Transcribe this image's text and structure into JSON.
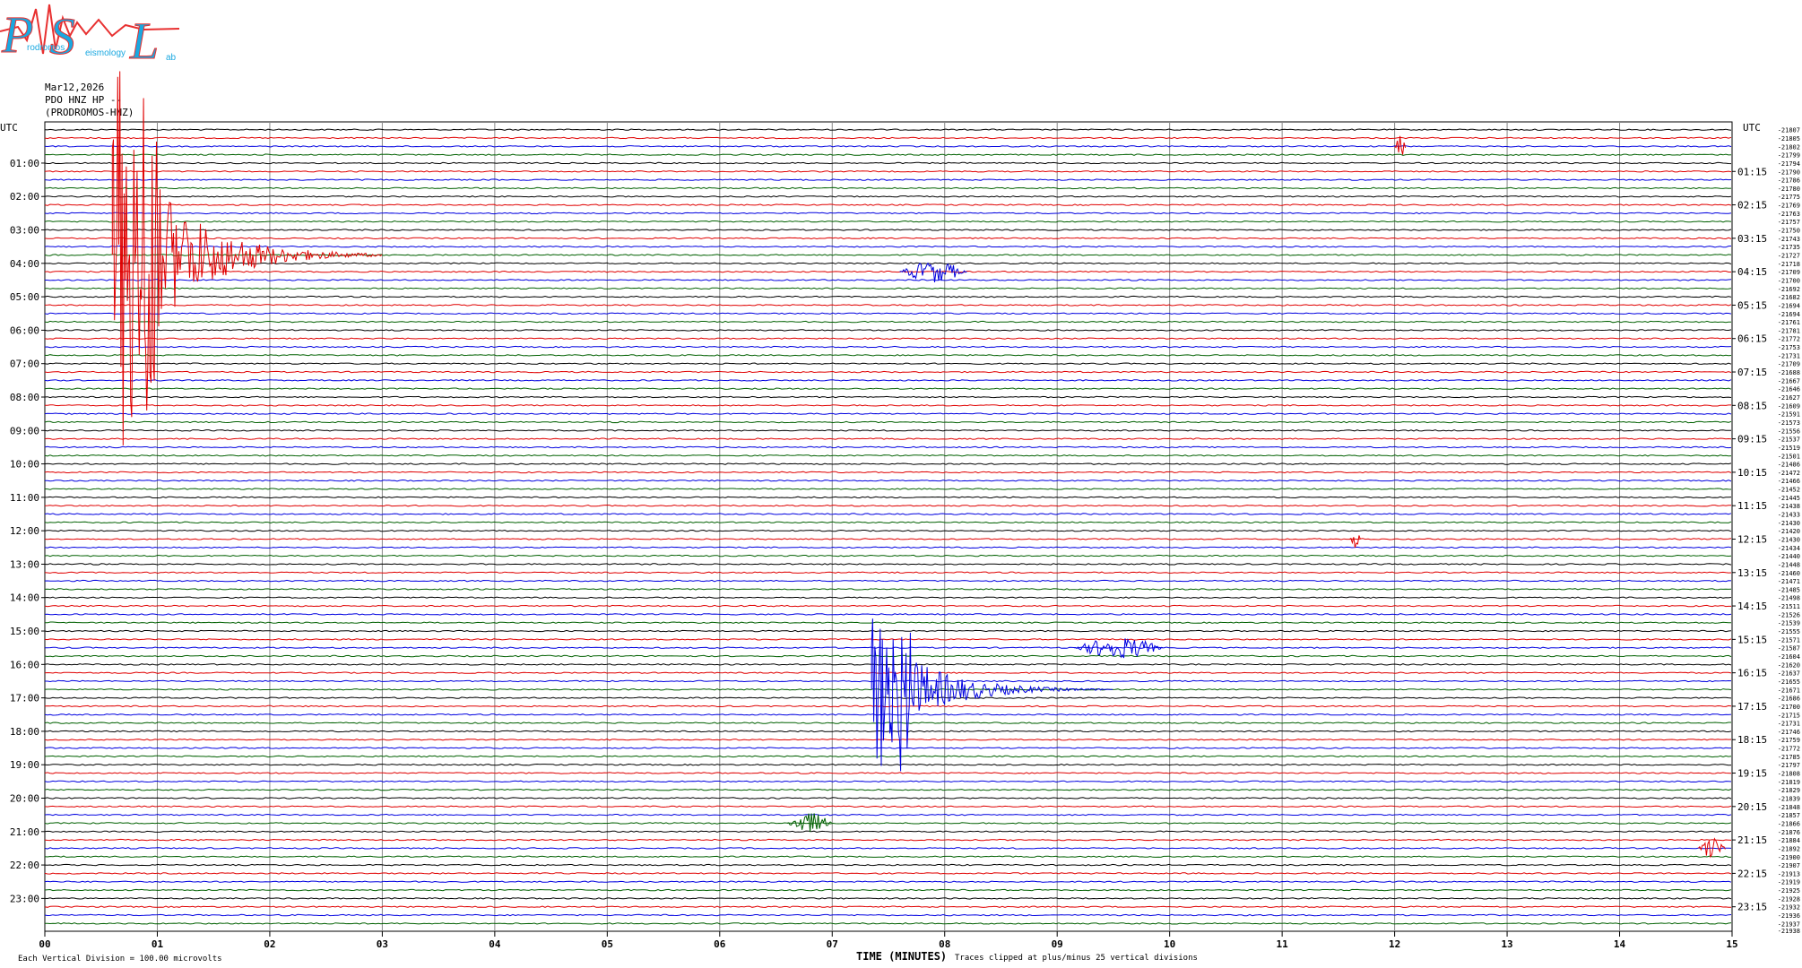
{
  "header": {
    "date": "Mar12,2026",
    "station": "PDO HNZ HP --",
    "site": "(PRODROMOS-HNZ)"
  },
  "logo": {
    "letters": [
      "P",
      "S",
      "L"
    ],
    "small_text": [
      "rodromos",
      "eismology",
      "ab"
    ]
  },
  "chart_data": {
    "type": "helicorder",
    "left_axis_top_label": "UTC",
    "right_axis_top_label": "UTC",
    "left_hour_labels": [
      "01:00",
      "02:00",
      "03:00",
      "04:00",
      "05:00",
      "06:00",
      "07:00",
      "08:00",
      "09:00",
      "10:00",
      "11:00",
      "12:00",
      "13:00",
      "14:00",
      "15:00",
      "16:00",
      "17:00",
      "18:00",
      "19:00",
      "20:00",
      "21:00",
      "22:00",
      "23:00"
    ],
    "right_hour_labels": [
      "01:15",
      "02:15",
      "03:15",
      "04:15",
      "05:15",
      "06:15",
      "07:15",
      "08:15",
      "09:15",
      "10:15",
      "11:15",
      "12:15",
      "13:15",
      "14:15",
      "15:15",
      "16:15",
      "17:15",
      "18:15",
      "19:15",
      "20:15",
      "21:15",
      "22:15",
      "23:15"
    ],
    "x_ticks": [
      "00",
      "01",
      "02",
      "03",
      "04",
      "05",
      "06",
      "07",
      "08",
      "09",
      "10",
      "11",
      "12",
      "13",
      "14",
      "15"
    ],
    "xlabel": "TIME (MINUTES)",
    "xlim": [
      0,
      15
    ],
    "rows": 96,
    "minutes_per_row": 15,
    "trace_colors": [
      "#000000",
      "#e00000",
      "#0000e0",
      "#006000"
    ],
    "grid_color": "#888888",
    "offsets": [
      -21807,
      -21805,
      -21802,
      -21799,
      -21794,
      -21790,
      -21786,
      -21780,
      -21775,
      -21769,
      -21763,
      -21757,
      -21750,
      -21743,
      -21735,
      -21727,
      -21718,
      -21709,
      -21700,
      -21692,
      -21682,
      -21694,
      -21694,
      -21761,
      -21781,
      -21772,
      -21753,
      -21731,
      -21709,
      -21688,
      -21667,
      -21646,
      -21627,
      -21609,
      -21591,
      -21573,
      -21556,
      -21537,
      -21519,
      -21501,
      -21486,
      -21472,
      -21466,
      -21452,
      -21445,
      -21438,
      -21433,
      -21430,
      -21420,
      -21430,
      -21434,
      -21440,
      -21448,
      -21460,
      -21471,
      -21485,
      -21498,
      -21511,
      -21526,
      -21539,
      -21555,
      -21571,
      -21587,
      -21604,
      -21620,
      -21637,
      -21655,
      -21671,
      -21686,
      -21700,
      -21715,
      -21731,
      -21746,
      -21759,
      -21772,
      -21785,
      -21797,
      -21808,
      -21819,
      -21829,
      -21839,
      -21848,
      -21857,
      -21866,
      -21876,
      -21884,
      -21892,
      -21900,
      -21907,
      -21913,
      -21919,
      -21925,
      -21928,
      -21932,
      -21936,
      -21937
    ],
    "bottom_offset_label": "-21938",
    "events": [
      {
        "row": 15,
        "start_min": 0.6,
        "end_min": 1.0,
        "amplitude": "clipped",
        "color": "#e00000",
        "coda_end_min": 3.0
      },
      {
        "row": 67,
        "start_min": 7.35,
        "end_min": 7.7,
        "amplitude": "large",
        "color": "#0000e0",
        "coda_end_min": 9.5
      },
      {
        "row": 62,
        "start_min": 9.15,
        "end_min": 9.95,
        "amplitude": "small",
        "color": "#0000e0"
      },
      {
        "row": 17,
        "start_min": 7.6,
        "end_min": 8.2,
        "amplitude": "small",
        "color": "#0000e0"
      },
      {
        "row": 86,
        "start_min": 14.7,
        "end_min": 14.95,
        "amplitude": "small",
        "color": "#e00000"
      },
      {
        "row": 83,
        "start_min": 6.6,
        "end_min": 7.0,
        "amplitude": "small",
        "color": "#006000"
      },
      {
        "row": 2,
        "start_min": 12.0,
        "end_min": 12.1,
        "amplitude": "small",
        "color": "#e00000"
      },
      {
        "row": 49,
        "start_min": 11.6,
        "end_min": 11.7,
        "amplitude": "small",
        "color": "#e00000"
      }
    ],
    "footer_left": "Each Vertical Division =  100.00 microvolts",
    "footer_clip_note": "Traces clipped at plus/minus 25 vertical divisions"
  }
}
